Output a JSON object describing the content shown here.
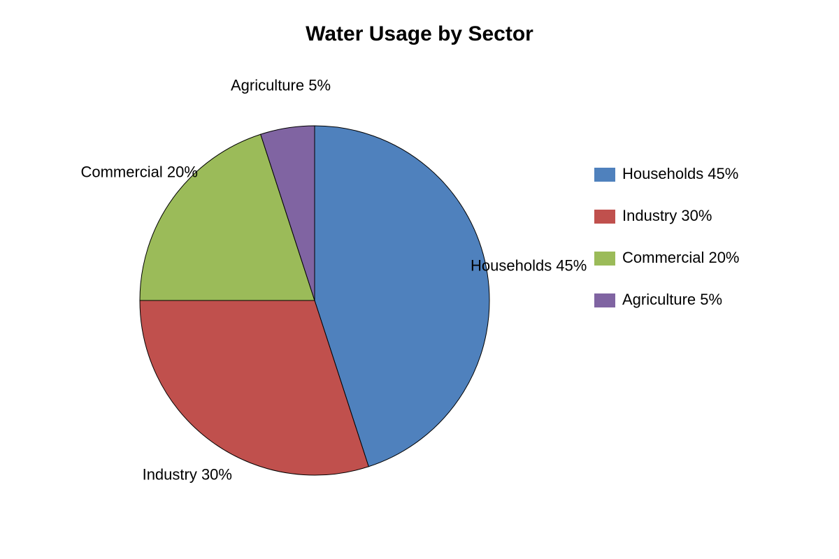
{
  "chart_data": {
    "type": "pie",
    "title": "Water Usage by Sector",
    "categories": [
      "Households 45%",
      "Industry 30%",
      "Commercial 20%",
      "Agriculture 5%"
    ],
    "values": [
      45,
      30,
      20,
      5
    ],
    "colors": [
      "#4f81bd",
      "#c0504d",
      "#9bbb59",
      "#8064a2"
    ],
    "legend": "right"
  }
}
